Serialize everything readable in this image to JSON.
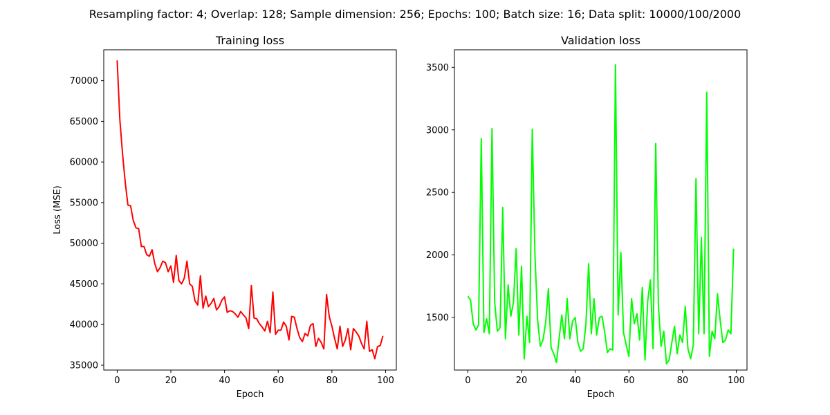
{
  "suptitle": "Resampling factor: 4; Overlap: 128; Sample dimension: 256; Epochs: 100; Batch size: 16; Data split: 10000/100/2000",
  "chart_data": [
    {
      "type": "line",
      "title": "Training loss",
      "xlabel": "Epoch",
      "ylabel": "Loss (MSE)",
      "xlim": [
        -5,
        104
      ],
      "ylim": [
        34400,
        73800
      ],
      "xticks": [
        0,
        20,
        40,
        60,
        80,
        100
      ],
      "yticks": [
        35000,
        40000,
        45000,
        50000,
        55000,
        60000,
        65000,
        70000
      ],
      "color": "#ff0000",
      "x": [
        0,
        1,
        2,
        3,
        4,
        5,
        6,
        7,
        8,
        9,
        10,
        11,
        12,
        13,
        14,
        15,
        16,
        17,
        18,
        19,
        20,
        21,
        22,
        23,
        24,
        25,
        26,
        27,
        28,
        29,
        30,
        31,
        32,
        33,
        34,
        35,
        36,
        37,
        38,
        39,
        40,
        41,
        42,
        43,
        44,
        45,
        46,
        47,
        48,
        49,
        50,
        51,
        52,
        53,
        54,
        55,
        56,
        57,
        58,
        59,
        60,
        61,
        62,
        63,
        64,
        65,
        66,
        67,
        68,
        69,
        70,
        71,
        72,
        73,
        74,
        75,
        76,
        77,
        78,
        79,
        80,
        81,
        82,
        83,
        84,
        85,
        86,
        87,
        88,
        89,
        90,
        91,
        92,
        93,
        94,
        95,
        96,
        97,
        98,
        99
      ],
      "values": [
        72500,
        65200,
        61000,
        57500,
        54700,
        54600,
        52800,
        51900,
        51800,
        49600,
        49600,
        48600,
        48400,
        49200,
        47500,
        46500,
        47000,
        47800,
        47600,
        46500,
        47200,
        45200,
        48500,
        45400,
        45000,
        45700,
        47800,
        45000,
        44700,
        42900,
        42400,
        46000,
        42000,
        43500,
        42200,
        42600,
        43200,
        41800,
        42200,
        43000,
        43400,
        41500,
        41700,
        41600,
        41300,
        40900,
        41600,
        41200,
        40800,
        39500,
        44800,
        40800,
        40700,
        40100,
        39700,
        39200,
        40400,
        39000,
        44000,
        38800,
        39300,
        39300,
        40300,
        39800,
        38100,
        41000,
        40900,
        39500,
        38400,
        37900,
        38900,
        38600,
        39900,
        40100,
        37300,
        38300,
        37800,
        37000,
        43700,
        41000,
        39800,
        38300,
        37000,
        39800,
        37300,
        38100,
        39500,
        36900,
        39500,
        39100,
        38600,
        37700,
        37000,
        40400,
        36700,
        36900,
        35800,
        37300,
        37400,
        38600
      ]
    },
    {
      "type": "line",
      "title": "Validation loss",
      "xlabel": "Epoch",
      "ylabel": "",
      "xlim": [
        -5,
        104
      ],
      "ylim": [
        1080,
        3640
      ],
      "xticks": [
        0,
        20,
        40,
        60,
        80,
        100
      ],
      "yticks": [
        1500,
        2000,
        2500,
        3000,
        3500
      ],
      "color": "#00ff00",
      "x": [
        0,
        1,
        2,
        3,
        4,
        5,
        6,
        7,
        8,
        9,
        10,
        11,
        12,
        13,
        14,
        15,
        16,
        17,
        18,
        19,
        20,
        21,
        22,
        23,
        24,
        25,
        26,
        27,
        28,
        29,
        30,
        31,
        32,
        33,
        34,
        35,
        36,
        37,
        38,
        39,
        40,
        41,
        42,
        43,
        44,
        45,
        46,
        47,
        48,
        49,
        50,
        51,
        52,
        53,
        54,
        55,
        56,
        57,
        58,
        59,
        60,
        61,
        62,
        63,
        64,
        65,
        66,
        67,
        68,
        69,
        70,
        71,
        72,
        73,
        74,
        75,
        76,
        77,
        78,
        79,
        80,
        81,
        82,
        83,
        84,
        85,
        86,
        87,
        88,
        89,
        90,
        91,
        92,
        93,
        94,
        95,
        96,
        97,
        98,
        99
      ],
      "values": [
        1670,
        1640,
        1450,
        1400,
        1440,
        2930,
        1380,
        1490,
        1370,
        3010,
        1620,
        1390,
        1420,
        2380,
        1330,
        1760,
        1510,
        1620,
        2050,
        1360,
        1910,
        1170,
        1510,
        1300,
        3005,
        2000,
        1480,
        1270,
        1320,
        1460,
        1730,
        1260,
        1210,
        1140,
        1330,
        1520,
        1330,
        1650,
        1330,
        1470,
        1500,
        1300,
        1230,
        1250,
        1450,
        1930,
        1370,
        1650,
        1360,
        1500,
        1510,
        1380,
        1220,
        1250,
        1240,
        3520,
        1520,
        2020,
        1380,
        1280,
        1190,
        1650,
        1450,
        1530,
        1320,
        1740,
        1160,
        1630,
        1800,
        1250,
        2890,
        1590,
        1270,
        1390,
        1130,
        1160,
        1300,
        1430,
        1210,
        1360,
        1300,
        1590,
        1250,
        1170,
        1280,
        2610,
        1370,
        2140,
        1370,
        3300,
        1190,
        1390,
        1330,
        1690,
        1480,
        1300,
        1320,
        1400,
        1370,
        2050
      ]
    }
  ]
}
